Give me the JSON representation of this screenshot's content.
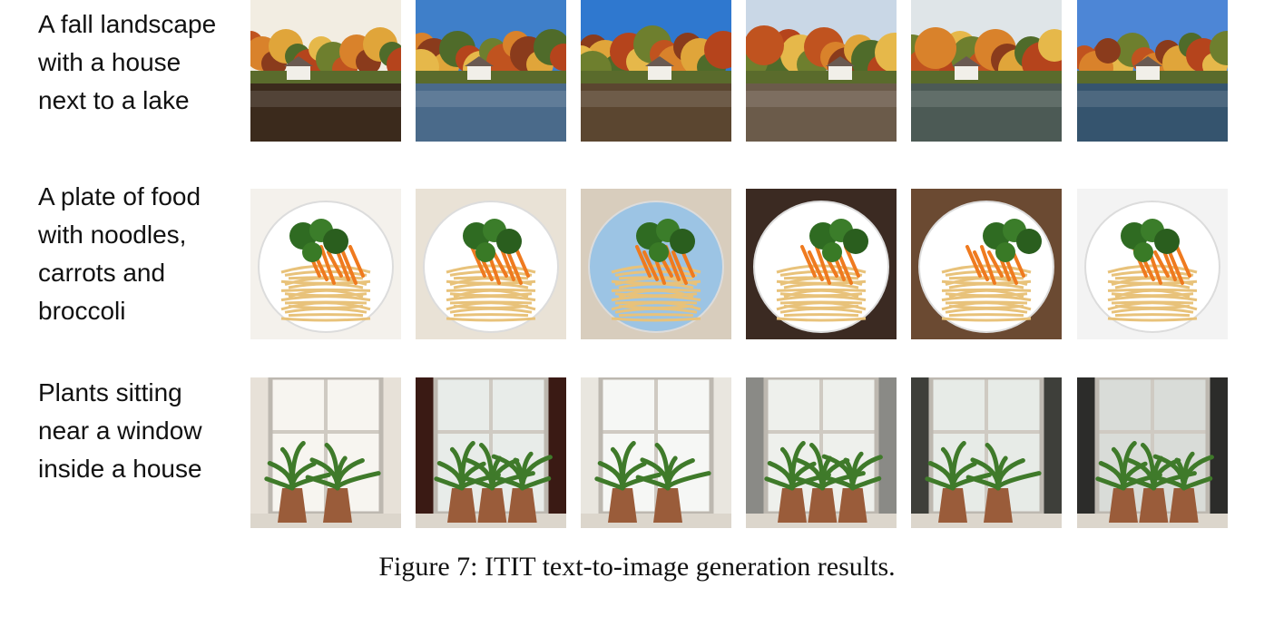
{
  "rows": [
    {
      "prompt_lines": [
        "A fall landscape",
        "with a house",
        "next to a lake"
      ],
      "images": [
        {
          "icon": "autumn-lake-house-photo",
          "sky": "#f2ede2",
          "water": "#3b2a1c"
        },
        {
          "icon": "autumn-lake-house-photo",
          "sky": "#3f7fc9",
          "water": "#4a6a8a"
        },
        {
          "icon": "autumn-lake-house-photo",
          "sky": "#2f78cf",
          "water": "#5b4630"
        },
        {
          "icon": "autumn-lake-house-photo",
          "sky": "#c9d7e6",
          "water": "#6b5b4a"
        },
        {
          "icon": "autumn-lake-house-photo",
          "sky": "#dfe5e8",
          "water": "#4c5a55"
        },
        {
          "icon": "autumn-lake-house-photo",
          "sky": "#4d86d6",
          "water": "#35546e"
        }
      ]
    },
    {
      "prompt_lines": [
        "A plate of food",
        "with noodles,",
        "carrots and",
        "broccoli"
      ],
      "images": [
        {
          "icon": "noodle-plate-photo",
          "bg": "#f4f1ec",
          "plate": "#ffffff"
        },
        {
          "icon": "noodle-plate-photo",
          "bg": "#e9e2d6",
          "plate": "#ffffff"
        },
        {
          "icon": "noodle-plate-photo",
          "bg": "#d8cdbd",
          "plate": "#9cc4e4"
        },
        {
          "icon": "noodle-plate-photo",
          "bg": "#3b2a22",
          "plate": "#ffffff"
        },
        {
          "icon": "noodle-plate-photo",
          "bg": "#6b4a32",
          "plate": "#ffffff"
        },
        {
          "icon": "noodle-plate-photo",
          "bg": "#f3f3f3",
          "plate": "#ffffff"
        }
      ]
    },
    {
      "prompt_lines": [
        "Plants sitting",
        "near a window",
        "inside a house"
      ],
      "images": [
        {
          "icon": "window-plants-photo",
          "wall": "#e7e1d8",
          "glass": "#f7f5f0"
        },
        {
          "icon": "window-plants-photo",
          "wall": "#3a1a14",
          "glass": "#e8ece9"
        },
        {
          "icon": "window-plants-photo",
          "wall": "#e9e6df",
          "glass": "#f6f7f5"
        },
        {
          "icon": "window-plants-photo",
          "wall": "#8a8a86",
          "glass": "#eef0ec"
        },
        {
          "icon": "window-plants-photo",
          "wall": "#3e3f3a",
          "glass": "#e7ebe7"
        },
        {
          "icon": "window-plants-photo",
          "wall": "#2c2c2a",
          "glass": "#d9dcd8"
        }
      ]
    }
  ],
  "caption": "Figure 7: ITIT text-to-image generation results."
}
